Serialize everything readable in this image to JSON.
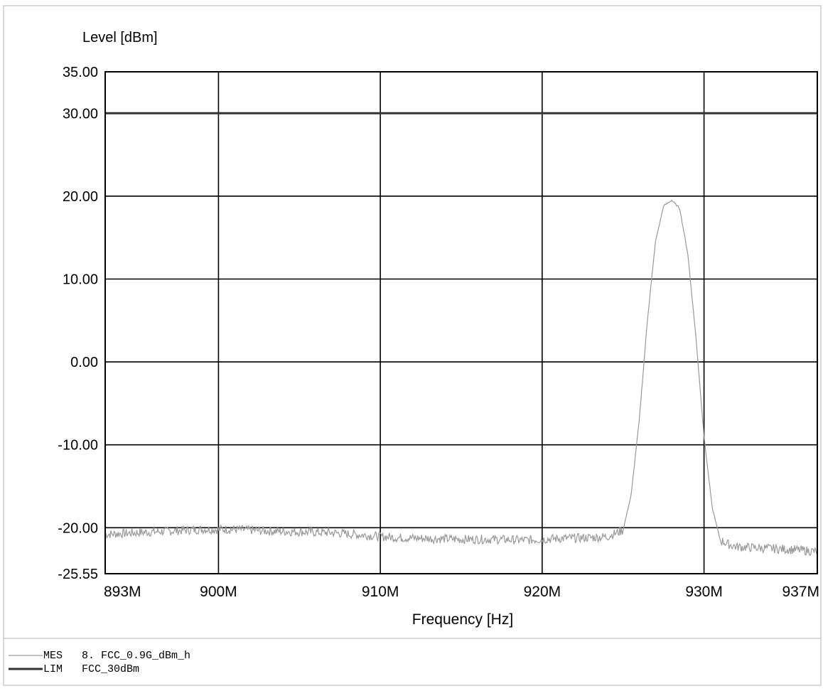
{
  "chart_data": {
    "type": "line",
    "ylabel": "Level [dBm]",
    "xlabel": "Frequency [Hz]",
    "xlim": [
      893,
      937
    ],
    "ylim": [
      -25.55,
      35
    ],
    "x_ticks": [
      {
        "value": 893,
        "label": "893M"
      },
      {
        "value": 900,
        "label": "900M"
      },
      {
        "value": 910,
        "label": "910M"
      },
      {
        "value": 920,
        "label": "920M"
      },
      {
        "value": 930,
        "label": "930M"
      },
      {
        "value": 937,
        "label": "937M"
      }
    ],
    "x_grid": [
      900,
      910,
      920,
      930
    ],
    "y_ticks": [
      {
        "value": 35,
        "label": "35.00"
      },
      {
        "value": 30,
        "label": "30.00"
      },
      {
        "value": 20,
        "label": "20.00"
      },
      {
        "value": 10,
        "label": "10.00"
      },
      {
        "value": 0,
        "label": "0.00"
      },
      {
        "value": -10,
        "label": "-10.00"
      },
      {
        "value": -20,
        "label": "-20.00"
      },
      {
        "value": -25.55,
        "label": "-25.55"
      }
    ],
    "y_grid": [
      20,
      10,
      0,
      -10,
      -20
    ],
    "grid": true,
    "series": [
      {
        "name": "MES",
        "color": "#9a9a9a",
        "x": [
          893,
          895,
          897,
          899,
          901,
          903,
          905,
          907,
          909,
          911,
          913,
          915,
          917,
          919,
          921,
          923,
          924,
          925,
          925.5,
          926,
          926.5,
          927,
          927.5,
          928,
          928.5,
          929,
          929.5,
          930,
          930.5,
          931,
          931.5,
          932,
          934,
          936,
          937
        ],
        "y": [
          -20.8,
          -20.6,
          -20.4,
          -20.2,
          -20.2,
          -20.4,
          -20.5,
          -20.6,
          -20.9,
          -21.2,
          -21.3,
          -21.4,
          -21.4,
          -21.5,
          -21.3,
          -21.2,
          -21.1,
          -20.3,
          -16,
          -7,
          5,
          14.5,
          18.8,
          19.5,
          18.5,
          13,
          3,
          -9,
          -17.5,
          -21.5,
          -22,
          -22.3,
          -22.5,
          -22.7,
          -22.9
        ]
      },
      {
        "name": "LIM",
        "color": "#333333",
        "x": [
          893,
          937
        ],
        "y": [
          30,
          30
        ]
      }
    ],
    "legend": {
      "placement": "bottom-left",
      "entries": [
        {
          "code": "MES",
          "text": "8. FCC_0.9G_dBm_h"
        },
        {
          "code": "LIM",
          "text": "FCC_30dBm"
        }
      ]
    }
  }
}
